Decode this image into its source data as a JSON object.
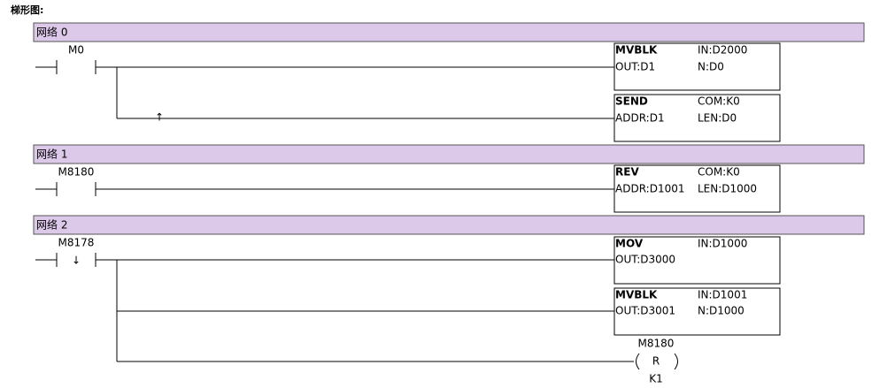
{
  "title": "梯形图:",
  "networks": [
    {
      "label": "网络 0",
      "contact": "M0",
      "branch_marker": "↑",
      "blocks": [
        {
          "name": "MVBLK",
          "params": [
            "IN:D2000",
            "OUT:D1",
            "N:D0"
          ]
        },
        {
          "name": "SEND",
          "params": [
            "COM:K0",
            "ADDR:D1",
            "LEN:D0"
          ]
        }
      ]
    },
    {
      "label": "网络 1",
      "contact": "M8180",
      "blocks": [
        {
          "name": "REV",
          "params": [
            "COM:K0",
            "ADDR:D1001",
            "LEN:D1000"
          ]
        }
      ]
    },
    {
      "label": "网络 2",
      "contact": "M8178",
      "contact_marker": "↓",
      "blocks": [
        {
          "name": "MOV",
          "params": [
            "IN:D1000",
            "OUT:D3000"
          ]
        },
        {
          "name": "MVBLK",
          "params": [
            "IN:D1001",
            "OUT:D3001",
            "N:D1000"
          ]
        }
      ],
      "coil": {
        "operand": "M8180",
        "type": "R",
        "count": "K1"
      }
    }
  ]
}
